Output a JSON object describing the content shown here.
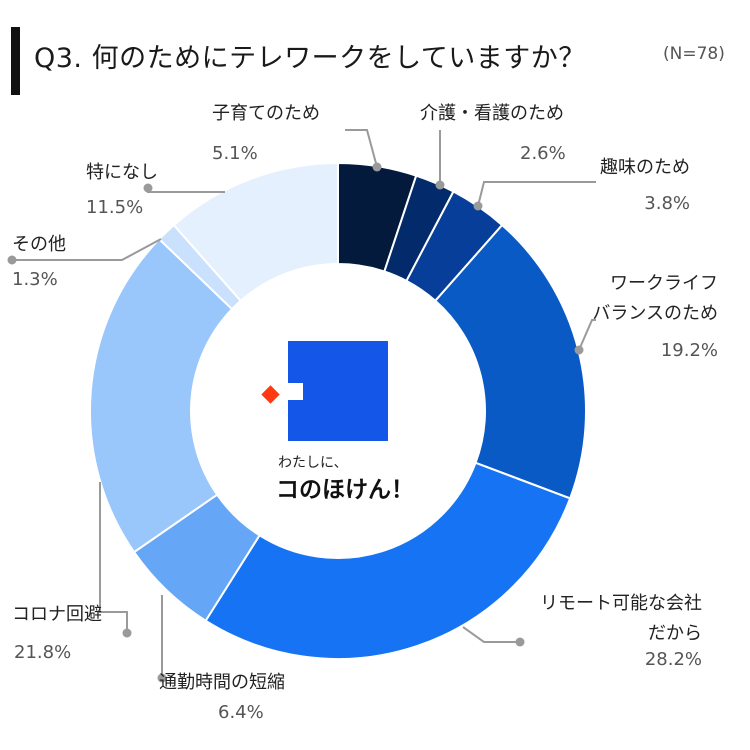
{
  "header": {
    "title": "Q3. 何のためにテレワークをしていますか？",
    "sample_size": "(N=78)"
  },
  "logo": {
    "tagline": "わたしに、",
    "name": "コのほけん！"
  },
  "colors": {
    "logo_blue": "#1356e8",
    "logo_accent": "#ff3a12"
  },
  "chart_data": {
    "type": "donut",
    "unit": "%",
    "slices": [
      {
        "label": [
          "子育てのため"
        ],
        "value": 5.1,
        "display": "5.1%",
        "color": "#041a3d"
      },
      {
        "label": [
          "介護・看護のため"
        ],
        "value": 2.6,
        "display": "2.6%",
        "color": "#032b6b"
      },
      {
        "label": [
          "趣味のため"
        ],
        "value": 3.8,
        "display": "3.8%",
        "color": "#063e99"
      },
      {
        "label": [
          "ワークライフ",
          "バランスのため"
        ],
        "value": 19.2,
        "display": "19.2%",
        "color": "#0a5ac6"
      },
      {
        "label": [
          "リモート可能な会社",
          "だから"
        ],
        "value": 28.2,
        "display": "28.2%",
        "color": "#1674f4"
      },
      {
        "label": [
          "通勤時間の短縮"
        ],
        "value": 6.4,
        "display": "6.4%",
        "color": "#66a6f7"
      },
      {
        "label": [
          "コロナ回避"
        ],
        "value": 21.8,
        "display": "21.8%",
        "color": "#99c6fb"
      },
      {
        "label": [
          "その他"
        ],
        "value": 1.3,
        "display": "1.3%",
        "color": "#c9e1fd"
      },
      {
        "label": [
          "特になし"
        ],
        "value": 11.5,
        "display": "11.5%",
        "color": "#e4f0fd"
      }
    ]
  }
}
